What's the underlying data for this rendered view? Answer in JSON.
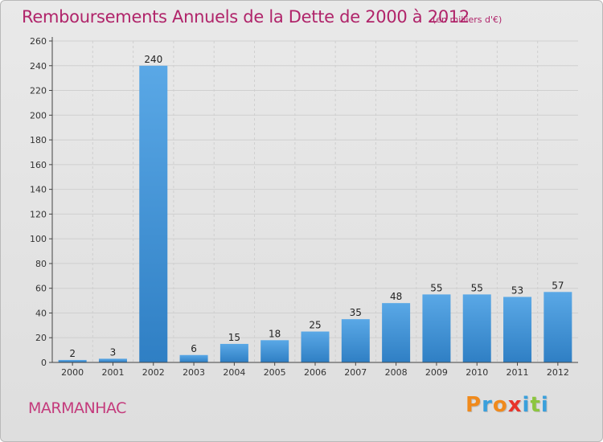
{
  "header": {
    "title": "Remboursements Annuels de la Dette de 2000 à 2012",
    "unit": "(en milliers d'€)"
  },
  "footer": {
    "commune": "MARMANHAC",
    "logo": "Proxiti",
    "logo_colors": [
      "#f08a1c",
      "#3aa0dc",
      "#f08a1c",
      "#e8332a",
      "#3aa0dc",
      "#8cc63f",
      "#3aa0dc"
    ]
  },
  "colors": {
    "title": "#b0246a",
    "bar_light": "#5aa8e6",
    "bar_dark": "#2f7fc4",
    "grid": "#cfcfcf"
  },
  "chart_data": {
    "type": "bar",
    "title": "Remboursements Annuels de la Dette de 2000 à 2012",
    "categories": [
      "2000",
      "2001",
      "2002",
      "2003",
      "2004",
      "2005",
      "2006",
      "2007",
      "2008",
      "2009",
      "2010",
      "2011",
      "2012"
    ],
    "values": [
      2,
      3,
      240,
      6,
      15,
      18,
      25,
      35,
      48,
      55,
      55,
      53,
      57
    ],
    "data_labels": [
      "2",
      "3",
      "240",
      "6",
      "15",
      "18",
      "25",
      "35",
      "48",
      "55",
      "55",
      "53",
      "57"
    ],
    "y_ticks": [
      0,
      20,
      40,
      60,
      80,
      100,
      120,
      140,
      160,
      180,
      200,
      220,
      240,
      260
    ],
    "ylim": [
      0,
      260
    ],
    "xlabel": "",
    "ylabel": "",
    "grid": true,
    "legend": "none"
  }
}
